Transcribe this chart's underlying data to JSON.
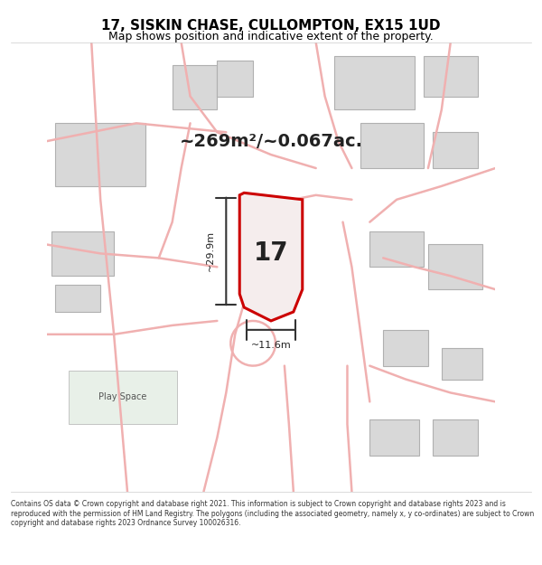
{
  "title": "17, SISKIN CHASE, CULLOMPTON, EX15 1UD",
  "subtitle": "Map shows position and indicative extent of the property.",
  "area_text": "~269m²/~0.067ac.",
  "dim_height": "~29.9m",
  "dim_width": "~11.6m",
  "label_17": "17",
  "play_space": "Play Space",
  "footer": "Contains OS data © Crown copyright and database right 2021. This information is subject to Crown copyright and database rights 2023 and is reproduced with the permission of HM Land Registry. The polygons (including the associated geometry, namely x, y co-ordinates) are subject to Crown copyright and database rights 2023 Ordnance Survey 100026316.",
  "bg_color": "#ffffff",
  "map_bg": "#f7f7f7",
  "road_color": "#f0b0b0",
  "building_color": "#d8d8d8",
  "building_outline": "#b0b0b0",
  "highlight_color": "#cc0000",
  "highlight_fill": "#f0e8e8",
  "green_fill": "#e8f0e8",
  "dim_color": "#333333",
  "title_color": "#000000",
  "text_color": "#333333",
  "footer_color": "#333333"
}
